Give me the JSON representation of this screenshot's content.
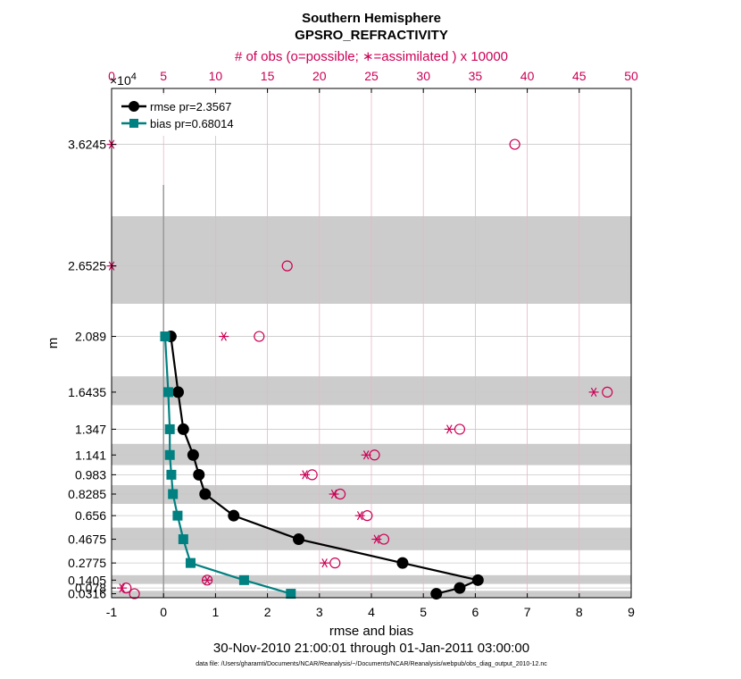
{
  "chart_data": {
    "type": "line",
    "title": "Southern Hemisphere",
    "subtitle": "GPSRO_REFRACTIVITY",
    "xlabel": "rmse and bias",
    "ylabel": "m",
    "date_range": "30-Nov-2010 21:00:01 through 01-Jan-2011 03:00:00",
    "footnote": "data file: /Users/gharamti/Documents/NCAR/Reanalysis/~/Documents/NCAR/Reanalysis/webpub/obs_diag_output_2010-12.nc",
    "xlim": [
      -1,
      9
    ],
    "xticks": [
      -1,
      0,
      1,
      2,
      3,
      4,
      5,
      6,
      7,
      8,
      9
    ],
    "top_axis": {
      "label": "# of obs (o=possible; ∗=assimilated ) x 10000",
      "xlim": [
        0,
        50
      ],
      "ticks": [
        0,
        5,
        10,
        15,
        20,
        25,
        30,
        35,
        40,
        45,
        50
      ],
      "color": "#cc0055"
    },
    "y_exponent": "×10",
    "y_exponent_power": "4",
    "levels": [
      0.0316,
      0.0775,
      0.1405,
      0.2775,
      0.4675,
      0.656,
      0.8285,
      0.983,
      1.141,
      1.347,
      1.6435,
      2.089,
      2.6525,
      3.6245
    ],
    "ytick_labels": [
      "0.0316",
      "0.078",
      "0.1405",
      "0.2775",
      "0.4675",
      "0.656",
      "0.8285",
      "0.983",
      "1.141",
      "1.347",
      "1.6435",
      "2.089",
      "2.6525",
      "3.6245"
    ],
    "shaded_bands": [
      [
        0.0,
        0.055
      ],
      [
        0.11,
        0.18
      ],
      [
        0.38,
        0.56
      ],
      [
        0.75,
        0.9
      ],
      [
        1.06,
        1.23
      ],
      [
        1.54,
        1.77
      ],
      [
        2.35,
        3.05
      ]
    ],
    "series": [
      {
        "name": "rmse pr=2.3567",
        "color": "#000000",
        "marker": "circle",
        "points": [
          [
            5.25,
            0.0316
          ],
          [
            5.7,
            0.0775
          ],
          [
            6.05,
            0.1405
          ],
          [
            4.6,
            0.2775
          ],
          [
            2.6,
            0.4675
          ],
          [
            1.35,
            0.656
          ],
          [
            0.8,
            0.8285
          ],
          [
            0.68,
            0.983
          ],
          [
            0.57,
            1.141
          ],
          [
            0.38,
            1.347
          ],
          [
            0.28,
            1.6435
          ],
          [
            0.14,
            2.089
          ]
        ]
      },
      {
        "name": "bias pr=0.68014",
        "color": "#008080",
        "marker": "square",
        "points": [
          [
            2.45,
            0.0316
          ],
          [
            1.55,
            0.1405
          ],
          [
            0.52,
            0.2775
          ],
          [
            0.38,
            0.4675
          ],
          [
            0.27,
            0.656
          ],
          [
            0.18,
            0.8285
          ],
          [
            0.15,
            0.983
          ],
          [
            0.12,
            1.141
          ],
          [
            0.12,
            1.347
          ],
          [
            0.09,
            1.6435
          ],
          [
            0.03,
            2.089
          ]
        ]
      }
    ],
    "obs_possible": [
      [
        2.2,
        0.0316
      ],
      [
        1.4,
        0.0775
      ],
      [
        9.2,
        0.1405
      ],
      [
        21.5,
        0.2775
      ],
      [
        26.2,
        0.4675
      ],
      [
        24.6,
        0.656
      ],
      [
        22.0,
        0.8285
      ],
      [
        19.3,
        0.983
      ],
      [
        25.3,
        1.141
      ],
      [
        33.5,
        1.347
      ],
      [
        47.7,
        1.6435
      ],
      [
        14.2,
        2.089
      ],
      [
        16.9,
        2.6525
      ],
      [
        38.8,
        3.6245
      ]
    ],
    "obs_assimilated": [
      [
        1.0,
        0.0775
      ],
      [
        9.2,
        0.1405
      ],
      [
        20.5,
        0.2775
      ],
      [
        25.5,
        0.4675
      ],
      [
        23.9,
        0.656
      ],
      [
        21.4,
        0.8285
      ],
      [
        18.6,
        0.983
      ],
      [
        24.5,
        1.141
      ],
      [
        32.5,
        1.347
      ],
      [
        46.4,
        1.6435
      ],
      [
        10.8,
        2.089
      ],
      [
        0,
        2.6525
      ],
      [
        0,
        3.6245
      ]
    ],
    "zero_line_top": 3.3
  }
}
